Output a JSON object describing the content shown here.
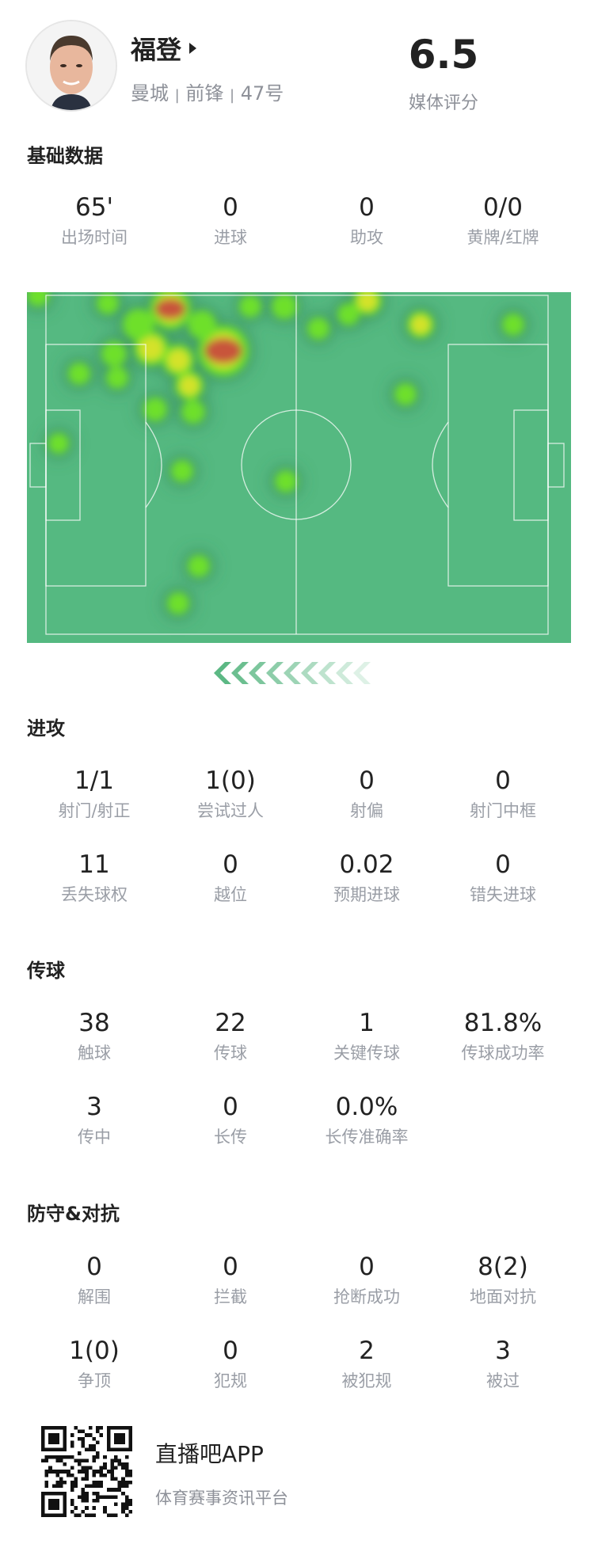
{
  "player": {
    "name": "福登",
    "team": "曼城",
    "position": "前锋",
    "number": "47号",
    "separator": "|",
    "rating": "6.5",
    "rating_label": "媒体评分",
    "avatar_icon": "player-photo"
  },
  "sections": [
    {
      "title": "基础数据",
      "rows": [
        [
          {
            "value": "65'",
            "label": "出场时间"
          },
          {
            "value": "0",
            "label": "进球"
          },
          {
            "value": "0",
            "label": "助攻"
          },
          {
            "value": "0/0",
            "label": "黄牌/红牌"
          }
        ]
      ]
    },
    {
      "title": "进攻",
      "rows": [
        [
          {
            "value": "1/1",
            "label": "射门/射正"
          },
          {
            "value": "1(0)",
            "label": "尝试过人"
          },
          {
            "value": "0",
            "label": "射偏"
          },
          {
            "value": "0",
            "label": "射门中框"
          }
        ],
        [
          {
            "value": "11",
            "label": "丢失球权"
          },
          {
            "value": "0",
            "label": "越位"
          },
          {
            "value": "0.02",
            "label": "预期进球"
          },
          {
            "value": "0",
            "label": "错失进球"
          }
        ]
      ]
    },
    {
      "title": "传球",
      "rows": [
        [
          {
            "value": "38",
            "label": "触球"
          },
          {
            "value": "22",
            "label": "传球"
          },
          {
            "value": "1",
            "label": "关键传球"
          },
          {
            "value": "81.8%",
            "label": "传球成功率"
          }
        ],
        [
          {
            "value": "3",
            "label": "传中"
          },
          {
            "value": "0",
            "label": "长传"
          },
          {
            "value": "0.0%",
            "label": "长传准确率"
          }
        ]
      ]
    },
    {
      "title": "防守&对抗",
      "rows": [
        [
          {
            "value": "0",
            "label": "解围"
          },
          {
            "value": "0",
            "label": "拦截"
          },
          {
            "value": "0",
            "label": "抢断成功"
          },
          {
            "value": "8(2)",
            "label": "地面对抗"
          }
        ],
        [
          {
            "value": "1(0)",
            "label": "争顶"
          },
          {
            "value": "0",
            "label": "犯规"
          },
          {
            "value": "2",
            "label": "被犯规"
          },
          {
            "value": "3",
            "label": "被过"
          }
        ]
      ]
    }
  ],
  "heatmap": {
    "pitch_color": "#55b981",
    "attack_direction": "left",
    "arrow_icon": "chevron-left-icon",
    "arrow_color": "#5cb884"
  },
  "footer": {
    "app_name": "直播吧APP",
    "tagline": "体育赛事资讯平台",
    "qr_icon": "qr-code"
  }
}
